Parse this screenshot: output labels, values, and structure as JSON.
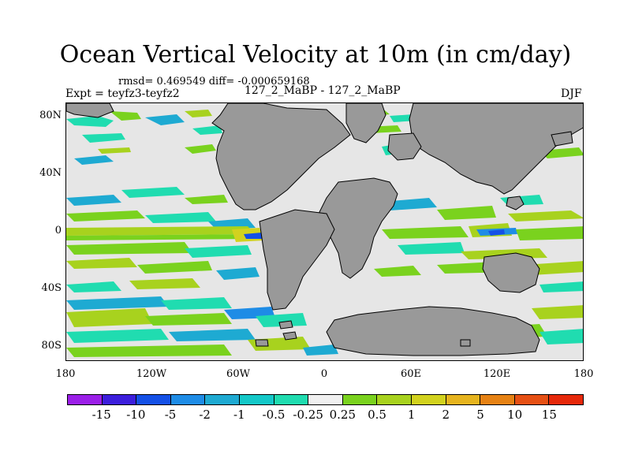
{
  "title": "Ocean Vertical Velocity at 10m (in cm/day)",
  "stats": "rmsd= 0.469549 diff= -0.000659168",
  "experiment": "Expt = teyfz3-teyfz2",
  "cases": "127_2_MaBP - 127_2_MaBP",
  "season": "DJF",
  "chart_data": {
    "type": "heatmap",
    "projection": "cylindrical equidistant",
    "variable": "Ocean vertical velocity difference at 10m",
    "units": "cm/day",
    "x_range": [
      -180,
      180
    ],
    "y_range": [
      -90,
      90
    ],
    "x_ticks": [
      {
        "value": -180,
        "label": "180"
      },
      {
        "value": -120,
        "label": "120W"
      },
      {
        "value": -60,
        "label": "60W"
      },
      {
        "value": 0,
        "label": "0"
      },
      {
        "value": 60,
        "label": "60E"
      },
      {
        "value": 120,
        "label": "120E"
      },
      {
        "value": 180,
        "label": "180"
      }
    ],
    "y_ticks": [
      {
        "value": 80,
        "label": "80N"
      },
      {
        "value": 40,
        "label": "40N"
      },
      {
        "value": 0,
        "label": "0"
      },
      {
        "value": -40,
        "label": "40S"
      },
      {
        "value": -80,
        "label": "80S"
      }
    ],
    "colorbar": {
      "levels": [
        "-15",
        "-10",
        "-5",
        "-2",
        "-1",
        "-0.5",
        "-0.25",
        "0.25",
        "0.5",
        "1",
        "2",
        "5",
        "10",
        "15"
      ],
      "colors": [
        "#9b1fe8",
        "#3c1edc",
        "#1450e6",
        "#1e8ce6",
        "#1eaad2",
        "#14c8c8",
        "#20dcb0",
        "#f0f0f0",
        "#7ad21e",
        "#a8d21e",
        "#d2d21e",
        "#e6b41e",
        "#e68214",
        "#e65014",
        "#e6280a"
      ]
    },
    "land_color": "#999999",
    "ocean_zero_color": "#e6e6e6",
    "features": [
      {
        "name": "equatorial band",
        "lat": [
          -3,
          3
        ],
        "lon": [
          -175,
          178
        ],
        "value": 1
      },
      {
        "name": "equatorial Pacific downwelling",
        "lat": [
          -2,
          2
        ],
        "lon": [
          -60,
          -55
        ],
        "value": -2
      },
      {
        "name": "equatorial Pacific downwelling",
        "lat": [
          -1,
          2
        ],
        "lon": [
          120,
          140
        ],
        "value": -5
      },
      {
        "name": "southern ocean band",
        "lat": [
          -75,
          -50
        ],
        "lon": [
          -170,
          170
        ],
        "value": 0.5
      },
      {
        "name": "southern ocean band",
        "lat": [
          -65,
          -55
        ],
        "lon": [
          -120,
          20
        ],
        "value": -0.5
      }
    ]
  }
}
